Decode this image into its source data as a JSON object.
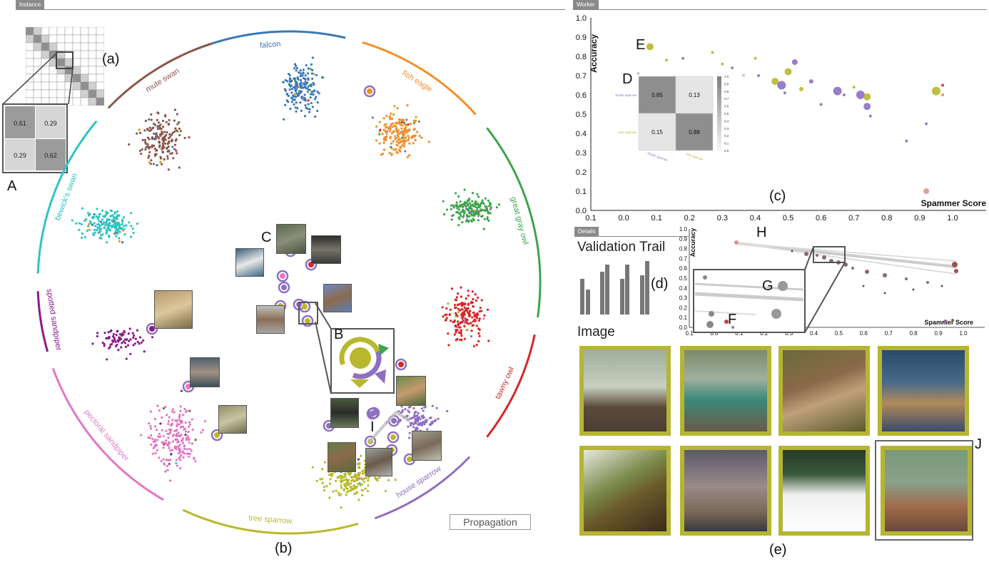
{
  "instance_tab": "Instance",
  "worker_tab": "Worker",
  "details_tab": "Details",
  "labels": {
    "a": "(a)",
    "b": "(b)",
    "c": "(c)",
    "d": "(d)",
    "e": "(e)",
    "A": "A",
    "B": "B",
    "C": "C",
    "D": "D",
    "E": "E",
    "F": "F",
    "G": "G",
    "H": "H",
    "I": "I",
    "J": "J"
  },
  "mini_matrix": {
    "v00": "0.61",
    "v01": "0.29",
    "v10": "0.29",
    "v11": "0.62"
  },
  "classes": [
    {
      "name": "falcon",
      "color": "#3b78b5"
    },
    {
      "name": "fish eagle",
      "color": "#f28e2b"
    },
    {
      "name": "great gray owl",
      "color": "#3fa34d"
    },
    {
      "name": "tawny owl",
      "color": "#d62728"
    },
    {
      "name": "house sparrow",
      "color": "#8e6fc1"
    },
    {
      "name": "tree sparrow",
      "color": "#b8b82e"
    },
    {
      "name": "pectoral sandpiper",
      "color": "#e377c2"
    },
    {
      "name": "spotted sandpiper",
      "color": "#8b1a8b"
    },
    {
      "name": "bewick's swan",
      "color": "#2ec4c4"
    },
    {
      "name": "mute swan",
      "color": "#8c564b"
    }
  ],
  "propagation_button": "Propagation",
  "worker_chart": {
    "xlabel": "Spammer Score",
    "ylabel": "Accuracy",
    "xticks": [
      "0.1",
      "0.0",
      "0.1",
      "0.2",
      "0.3",
      "0.4",
      "0.5",
      "0.6",
      "0.7",
      "0.8",
      "0.9",
      "1.0"
    ],
    "yticks": [
      "1.0",
      "0.9",
      "0.8",
      "0.7",
      "0.6",
      "0.5",
      "0.4",
      "0.3",
      "0.2",
      "0.1",
      "0.0"
    ]
  },
  "confusion": {
    "rows": [
      "house sparrow",
      "tree sparrow"
    ],
    "cols": [
      "house sparrow",
      "tree sparrow"
    ],
    "v00": "0.85",
    "v01": "0.13",
    "v10": "0.15",
    "v11": "0.88",
    "scale": [
      "1.0",
      "0.9",
      "0.8",
      "0.7",
      "0.6",
      "0.5",
      "0.4",
      "0.3",
      "0.2",
      "0.1",
      "0.0"
    ],
    "close": "×",
    "zero": "0"
  },
  "details": {
    "validation_trail": "Validation Trail",
    "image_label": "Image",
    "xlabel": "Spammer Score",
    "ylabel": "Accuracy",
    "xticks": [
      "0.1",
      "0.0",
      "0.1",
      "0.2",
      "0.3",
      "0.4",
      "0.5",
      "0.6",
      "0.7",
      "0.8",
      "0.9",
      "1.0"
    ],
    "yticks": [
      "1.0",
      "0.9",
      "0.8",
      "0.7",
      "0.6",
      "0.5",
      "0.4",
      "0.3",
      "0.2",
      "0.1",
      "0.0"
    ]
  },
  "colors": {
    "accent_border": "#b5b534",
    "panel_tab": "#8a8a8a"
  }
}
